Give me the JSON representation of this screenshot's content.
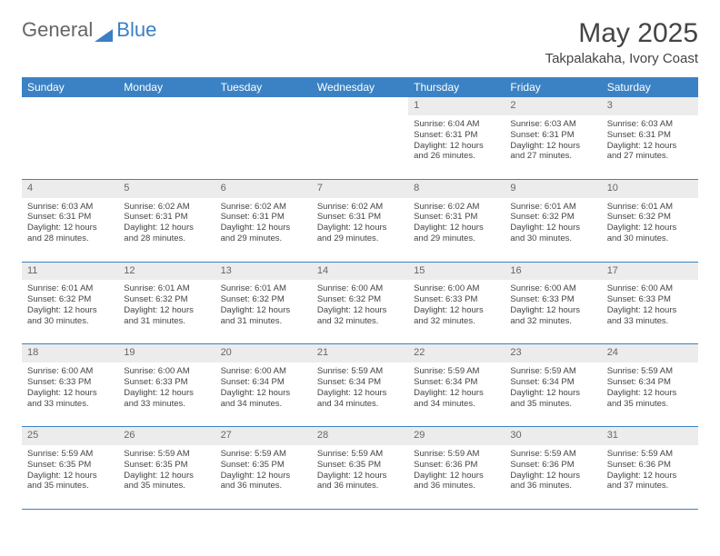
{
  "logo": {
    "text1": "General",
    "text2": "Blue"
  },
  "title": "May 2025",
  "location": "Takpalakaha, Ivory Coast",
  "colors": {
    "header_bg": "#3b82c4",
    "header_text": "#ffffff",
    "daynum_bg": "#ececec",
    "border": "#3b82c4",
    "text": "#444444",
    "logo_blue": "#3b7fc4"
  },
  "weekdays": [
    "Sunday",
    "Monday",
    "Tuesday",
    "Wednesday",
    "Thursday",
    "Friday",
    "Saturday"
  ],
  "weeks": [
    {
      "nums": [
        "",
        "",
        "",
        "",
        "1",
        "2",
        "3"
      ],
      "cells": [
        null,
        null,
        null,
        null,
        {
          "sr": "6:04 AM",
          "ss": "6:31 PM",
          "dl": "12 hours and 26 minutes."
        },
        {
          "sr": "6:03 AM",
          "ss": "6:31 PM",
          "dl": "12 hours and 27 minutes."
        },
        {
          "sr": "6:03 AM",
          "ss": "6:31 PM",
          "dl": "12 hours and 27 minutes."
        }
      ]
    },
    {
      "nums": [
        "4",
        "5",
        "6",
        "7",
        "8",
        "9",
        "10"
      ],
      "cells": [
        {
          "sr": "6:03 AM",
          "ss": "6:31 PM",
          "dl": "12 hours and 28 minutes."
        },
        {
          "sr": "6:02 AM",
          "ss": "6:31 PM",
          "dl": "12 hours and 28 minutes."
        },
        {
          "sr": "6:02 AM",
          "ss": "6:31 PM",
          "dl": "12 hours and 29 minutes."
        },
        {
          "sr": "6:02 AM",
          "ss": "6:31 PM",
          "dl": "12 hours and 29 minutes."
        },
        {
          "sr": "6:02 AM",
          "ss": "6:31 PM",
          "dl": "12 hours and 29 minutes."
        },
        {
          "sr": "6:01 AM",
          "ss": "6:32 PM",
          "dl": "12 hours and 30 minutes."
        },
        {
          "sr": "6:01 AM",
          "ss": "6:32 PM",
          "dl": "12 hours and 30 minutes."
        }
      ]
    },
    {
      "nums": [
        "11",
        "12",
        "13",
        "14",
        "15",
        "16",
        "17"
      ],
      "cells": [
        {
          "sr": "6:01 AM",
          "ss": "6:32 PM",
          "dl": "12 hours and 30 minutes."
        },
        {
          "sr": "6:01 AM",
          "ss": "6:32 PM",
          "dl": "12 hours and 31 minutes."
        },
        {
          "sr": "6:01 AM",
          "ss": "6:32 PM",
          "dl": "12 hours and 31 minutes."
        },
        {
          "sr": "6:00 AM",
          "ss": "6:32 PM",
          "dl": "12 hours and 32 minutes."
        },
        {
          "sr": "6:00 AM",
          "ss": "6:33 PM",
          "dl": "12 hours and 32 minutes."
        },
        {
          "sr": "6:00 AM",
          "ss": "6:33 PM",
          "dl": "12 hours and 32 minutes."
        },
        {
          "sr": "6:00 AM",
          "ss": "6:33 PM",
          "dl": "12 hours and 33 minutes."
        }
      ]
    },
    {
      "nums": [
        "18",
        "19",
        "20",
        "21",
        "22",
        "23",
        "24"
      ],
      "cells": [
        {
          "sr": "6:00 AM",
          "ss": "6:33 PM",
          "dl": "12 hours and 33 minutes."
        },
        {
          "sr": "6:00 AM",
          "ss": "6:33 PM",
          "dl": "12 hours and 33 minutes."
        },
        {
          "sr": "6:00 AM",
          "ss": "6:34 PM",
          "dl": "12 hours and 34 minutes."
        },
        {
          "sr": "5:59 AM",
          "ss": "6:34 PM",
          "dl": "12 hours and 34 minutes."
        },
        {
          "sr": "5:59 AM",
          "ss": "6:34 PM",
          "dl": "12 hours and 34 minutes."
        },
        {
          "sr": "5:59 AM",
          "ss": "6:34 PM",
          "dl": "12 hours and 35 minutes."
        },
        {
          "sr": "5:59 AM",
          "ss": "6:34 PM",
          "dl": "12 hours and 35 minutes."
        }
      ]
    },
    {
      "nums": [
        "25",
        "26",
        "27",
        "28",
        "29",
        "30",
        "31"
      ],
      "cells": [
        {
          "sr": "5:59 AM",
          "ss": "6:35 PM",
          "dl": "12 hours and 35 minutes."
        },
        {
          "sr": "5:59 AM",
          "ss": "6:35 PM",
          "dl": "12 hours and 35 minutes."
        },
        {
          "sr": "5:59 AM",
          "ss": "6:35 PM",
          "dl": "12 hours and 36 minutes."
        },
        {
          "sr": "5:59 AM",
          "ss": "6:35 PM",
          "dl": "12 hours and 36 minutes."
        },
        {
          "sr": "5:59 AM",
          "ss": "6:36 PM",
          "dl": "12 hours and 36 minutes."
        },
        {
          "sr": "5:59 AM",
          "ss": "6:36 PM",
          "dl": "12 hours and 36 minutes."
        },
        {
          "sr": "5:59 AM",
          "ss": "6:36 PM",
          "dl": "12 hours and 37 minutes."
        }
      ]
    }
  ],
  "labels": {
    "sunrise": "Sunrise:",
    "sunset": "Sunset:",
    "daylight": "Daylight:"
  }
}
